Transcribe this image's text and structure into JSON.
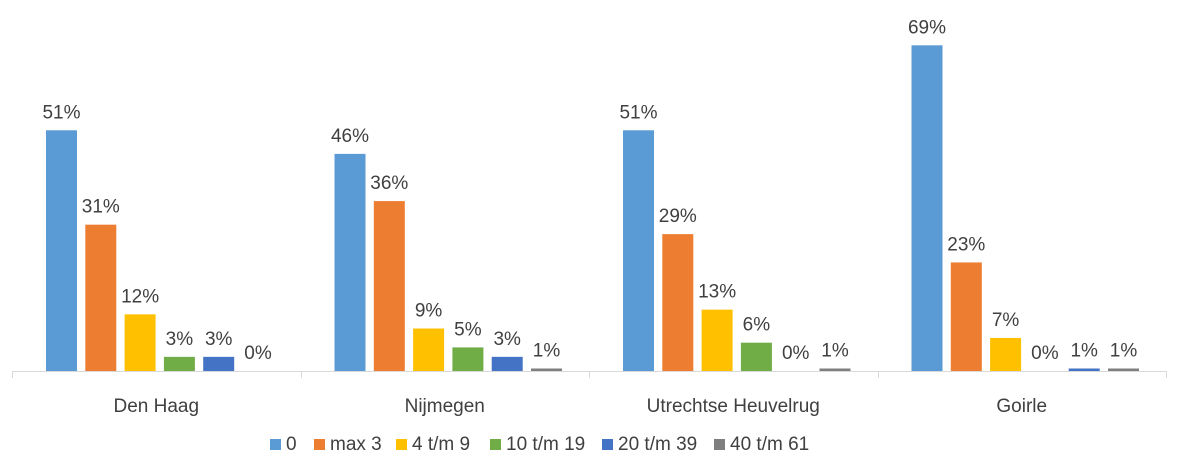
{
  "chart_data": {
    "type": "bar",
    "title": "",
    "xlabel": "",
    "ylabel": "",
    "ylim": [
      0,
      70
    ],
    "grid": false,
    "legend_position": "bottom",
    "categories": [
      "Den Haag",
      "Nijmegen",
      "Utrechtse Heuvelrug",
      "Goirle"
    ],
    "series": [
      {
        "name": "0",
        "color": "#5b9bd5",
        "values": [
          51,
          46,
          51,
          69
        ],
        "labels": [
          "51%",
          "46%",
          "51%",
          "69%"
        ]
      },
      {
        "name": "max 3",
        "color": "#ed7d31",
        "values": [
          31,
          36,
          29,
          23
        ],
        "labels": [
          "31%",
          "36%",
          "29%",
          "23%"
        ]
      },
      {
        "name": "4 t/m 9",
        "color": "#ffc000",
        "values": [
          12,
          9,
          13,
          7
        ],
        "labels": [
          "12%",
          "9%",
          "13%",
          "7%"
        ]
      },
      {
        "name": "10 t/m 19",
        "color": "#70ad47",
        "values": [
          3,
          5,
          6,
          0
        ],
        "labels": [
          "3%",
          "5%",
          "6%",
          "0%"
        ]
      },
      {
        "name": "20 t/m 39",
        "color": "#4472c4",
        "values": [
          3,
          3,
          0,
          1
        ],
        "labels": [
          "3%",
          "3%",
          "0%",
          "1%"
        ]
      },
      {
        "name": "40 t/m 61",
        "color": "#7f7f7f",
        "values": [
          0,
          1,
          1,
          1
        ],
        "labels": [
          "0%",
          "1%",
          "1%",
          "1%"
        ]
      }
    ]
  }
}
